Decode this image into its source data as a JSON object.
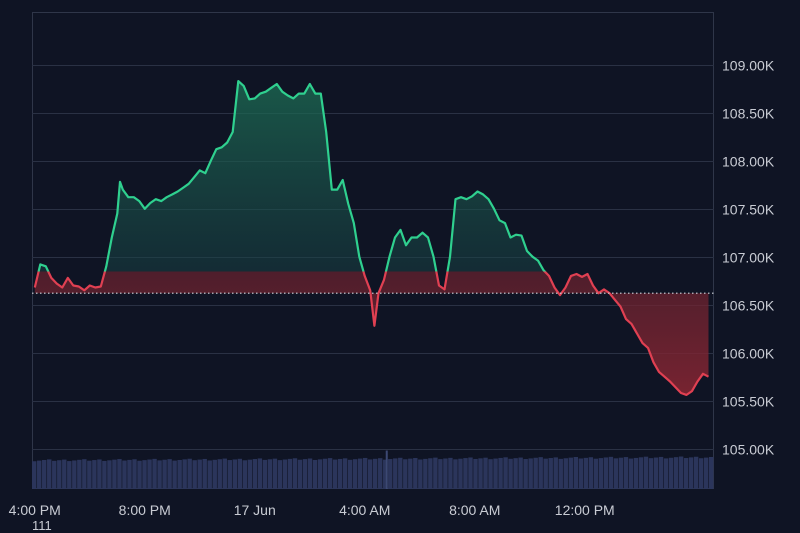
{
  "chart_data": {
    "type": "area",
    "baseline": 106620,
    "ylim": [
      104580,
      109550
    ],
    "y_ticks": [
      {
        "value": 109000,
        "label": "109.00K"
      },
      {
        "value": 108500,
        "label": "108.50K"
      },
      {
        "value": 108000,
        "label": "108.00K"
      },
      {
        "value": 107500,
        "label": "107.50K"
      },
      {
        "value": 107000,
        "label": "107.00K"
      },
      {
        "value": 106500,
        "label": "106.50K"
      },
      {
        "value": 106000,
        "label": "106.00K"
      },
      {
        "value": 105500,
        "label": "105.50K"
      },
      {
        "value": 105000,
        "label": "105.00K"
      }
    ],
    "x_ticks": [
      {
        "hours": 0,
        "label": "4:00 PM"
      },
      {
        "hours": 4,
        "label": "8:00 PM"
      },
      {
        "hours": 8,
        "label": "17 Jun"
      },
      {
        "hours": 12,
        "label": "4:00 AM"
      },
      {
        "hours": 16,
        "label": "8:00 AM"
      },
      {
        "hours": 20,
        "label": "12:00 PM"
      }
    ],
    "xlim": [
      -0.1,
      24.7
    ],
    "price_points": [
      [
        0.0,
        106680
      ],
      [
        0.2,
        106920
      ],
      [
        0.4,
        106900
      ],
      [
        0.6,
        106780
      ],
      [
        0.8,
        106720
      ],
      [
        1.0,
        106680
      ],
      [
        1.2,
        106780
      ],
      [
        1.4,
        106700
      ],
      [
        1.6,
        106690
      ],
      [
        1.8,
        106650
      ],
      [
        2.0,
        106700
      ],
      [
        2.2,
        106680
      ],
      [
        2.4,
        106690
      ],
      [
        2.6,
        106900
      ],
      [
        2.8,
        107200
      ],
      [
        3.0,
        107450
      ],
      [
        3.1,
        107780
      ],
      [
        3.2,
        107700
      ],
      [
        3.4,
        107620
      ],
      [
        3.6,
        107620
      ],
      [
        3.8,
        107580
      ],
      [
        4.0,
        107500
      ],
      [
        4.2,
        107560
      ],
      [
        4.4,
        107600
      ],
      [
        4.6,
        107580
      ],
      [
        4.8,
        107620
      ],
      [
        5.0,
        107650
      ],
      [
        5.2,
        107680
      ],
      [
        5.4,
        107720
      ],
      [
        5.6,
        107760
      ],
      [
        5.8,
        107830
      ],
      [
        6.0,
        107900
      ],
      [
        6.2,
        107870
      ],
      [
        6.4,
        108000
      ],
      [
        6.6,
        108120
      ],
      [
        6.8,
        108140
      ],
      [
        7.0,
        108190
      ],
      [
        7.2,
        108300
      ],
      [
        7.4,
        108830
      ],
      [
        7.6,
        108780
      ],
      [
        7.8,
        108640
      ],
      [
        8.0,
        108650
      ],
      [
        8.2,
        108700
      ],
      [
        8.4,
        108720
      ],
      [
        8.6,
        108760
      ],
      [
        8.8,
        108800
      ],
      [
        9.0,
        108720
      ],
      [
        9.2,
        108680
      ],
      [
        9.4,
        108650
      ],
      [
        9.6,
        108700
      ],
      [
        9.8,
        108700
      ],
      [
        10.0,
        108800
      ],
      [
        10.2,
        108700
      ],
      [
        10.4,
        108700
      ],
      [
        10.6,
        108300
      ],
      [
        10.8,
        107700
      ],
      [
        11.0,
        107700
      ],
      [
        11.2,
        107800
      ],
      [
        11.4,
        107550
      ],
      [
        11.6,
        107350
      ],
      [
        11.8,
        107000
      ],
      [
        12.0,
        106800
      ],
      [
        12.2,
        106650
      ],
      [
        12.35,
        106280
      ],
      [
        12.5,
        106620
      ],
      [
        12.7,
        106760
      ],
      [
        12.9,
        107000
      ],
      [
        13.1,
        107200
      ],
      [
        13.3,
        107280
      ],
      [
        13.5,
        107120
      ],
      [
        13.7,
        107200
      ],
      [
        13.9,
        107200
      ],
      [
        14.1,
        107250
      ],
      [
        14.3,
        107200
      ],
      [
        14.5,
        107000
      ],
      [
        14.7,
        106700
      ],
      [
        14.9,
        106660
      ],
      [
        15.1,
        107000
      ],
      [
        15.3,
        107600
      ],
      [
        15.5,
        107620
      ],
      [
        15.7,
        107600
      ],
      [
        15.9,
        107630
      ],
      [
        16.1,
        107680
      ],
      [
        16.3,
        107650
      ],
      [
        16.5,
        107600
      ],
      [
        16.7,
        107500
      ],
      [
        16.9,
        107380
      ],
      [
        17.1,
        107350
      ],
      [
        17.3,
        107200
      ],
      [
        17.5,
        107230
      ],
      [
        17.7,
        107220
      ],
      [
        17.9,
        107060
      ],
      [
        18.1,
        107000
      ],
      [
        18.3,
        106960
      ],
      [
        18.5,
        106860
      ],
      [
        18.7,
        106800
      ],
      [
        18.9,
        106680
      ],
      [
        19.1,
        106600
      ],
      [
        19.3,
        106680
      ],
      [
        19.5,
        106800
      ],
      [
        19.7,
        106820
      ],
      [
        19.9,
        106790
      ],
      [
        20.1,
        106820
      ],
      [
        20.3,
        106700
      ],
      [
        20.5,
        106620
      ],
      [
        20.7,
        106660
      ],
      [
        20.9,
        106620
      ],
      [
        21.1,
        106550
      ],
      [
        21.3,
        106480
      ],
      [
        21.5,
        106350
      ],
      [
        21.7,
        106300
      ],
      [
        21.9,
        106200
      ],
      [
        22.1,
        106100
      ],
      [
        22.3,
        106050
      ],
      [
        22.5,
        105900
      ],
      [
        22.7,
        105800
      ],
      [
        22.9,
        105750
      ],
      [
        23.1,
        105700
      ],
      [
        23.3,
        105640
      ],
      [
        23.5,
        105580
      ],
      [
        23.7,
        105560
      ],
      [
        23.9,
        105600
      ],
      [
        24.1,
        105700
      ],
      [
        24.3,
        105780
      ],
      [
        24.5,
        105750
      ]
    ],
    "volume_level_price": 104910,
    "volume_spike": {
      "hours": 12.8,
      "price": 104960
    }
  },
  "corner_label": "111",
  "colors": {
    "up_line": "#2fd08f",
    "down_line": "#e04052",
    "volume_fill": "#2b355b",
    "baseline": "#d0d4dc",
    "background": "#0f1424"
  }
}
